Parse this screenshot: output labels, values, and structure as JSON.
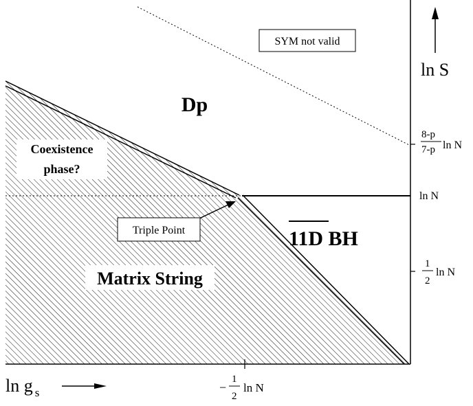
{
  "regions": {
    "dp": "Dp",
    "coexistence_line1": "Coexistence",
    "coexistence_line2": "phase?",
    "matrix_string": "Matrix String",
    "bh_11d": "11D BH"
  },
  "labels": {
    "sym_not_valid": "SYM not valid",
    "triple_point": "Triple Point"
  },
  "axes": {
    "y_label": "ln S",
    "x_label_base": "ln g",
    "x_label_sub": "s",
    "y_ticks": {
      "frac_num": "8-p",
      "frac_den": "7-p",
      "frac_suffix": "ln N",
      "ln_n": "ln N",
      "half_num": "1",
      "half_den": "2",
      "half_suffix": "ln N"
    },
    "x_tick": {
      "sign": "−",
      "num": "1",
      "den": "2",
      "suffix": "ln N"
    }
  },
  "colors": {
    "line": "#000000",
    "hatch": "#000000",
    "background": "#ffffff"
  }
}
